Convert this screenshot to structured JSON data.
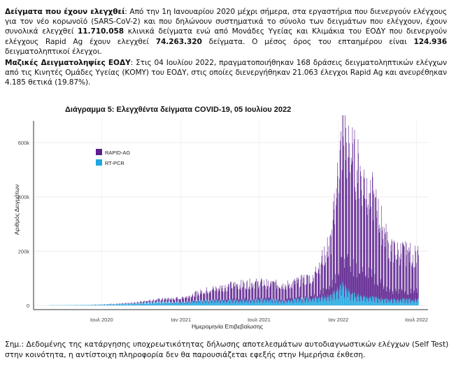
{
  "intro": {
    "p1_label": "Δείγματα που έχουν ελεγχθεί",
    "p1_a": ": Από την 1η Ιανουαρίου 2020 μέχρι σήμερα, στα εργαστήρια που διενεργούν ελέγχους για τον νέο κορωνοϊό (SARS-CoV-2) και που δηλώνουν συστηματικά το σύνολο των δειγμάτων που ελέγχουν, έχουν συνολικά ελεγχθεί ",
    "p1_total": "11.710.058",
    "p1_b": " κλινικά δείγματα ενώ από Μονάδες Υγείας και Κλιμάκια του ΕΟΔΥ που διενεργούν ελέγχους Rapid Ag έχουν ελεγχθεί ",
    "p1_rapid": "74.263.320",
    "p1_c": " δείγματα. Ο μέσος όρος του επταημέρου είναι ",
    "p1_avg": "124.936",
    "p1_d": " δειγματοληπτικοί έλεγχοι.",
    "p2_label": "Μαζικές Δειγματοληψίες ΕΟΔΥ",
    "p2_text": ": Στις 04 Ιουλίου 2022, πραγματοποιήθηκαν 168 δράσεις δειγματοληπτικών ελέγχων από τις Κινητές Ομάδες Υγείας (ΚΟΜΥ) του ΕΟΔΥ, στις οποίες διενεργήθηκαν 21.063 έλεγχοι Rapid Ag και ανευρέθηκαν 4.185 θετικά (19.87%)."
  },
  "note": "Σημ.: Δεδομένης της κατάργησης υποχρεωτικότητας δήλωσης αποτελεσμάτων αυτοδιαγνωστικών ελέγχων (Self Test) στην κοινότητα, η αντίστοιχη πληροφορία δεν θα παρουσιάζεται εφεξής στην Ημερήσια έκθεση.",
  "chart_data": {
    "type": "bar",
    "stacked": true,
    "title": "Διάγραμμα 5: Ελεγχθέντα δείγματα COVID-19, 05 Ιουλίου 2022",
    "xlabel": "Ημερομηνία Επιβεβαίωσης",
    "ylabel": "Αριθμός Δειγμάτων",
    "y_ticks": [
      "0",
      "200k",
      "400k",
      "600k"
    ],
    "y_tick_values": [
      0,
      200000,
      400000,
      600000
    ],
    "ylim": [
      0,
      680000
    ],
    "x_ticks": [
      "Ιουλ 2020",
      "Ιαν 2021",
      "Ιουλ 2021",
      "Ιαν 2022",
      "Ιουλ 2022"
    ],
    "x_tick_dates": [
      "2020-07-01",
      "2021-01-01",
      "2021-07-01",
      "2022-01-01",
      "2022-07-01"
    ],
    "x_range": [
      "2020-03-01",
      "2022-07-05"
    ],
    "legend_position": "top-left",
    "colors": {
      "RAPID-AG": "#5b1f8e",
      "RT-PCR": "#1fa8e0"
    },
    "series": [
      {
        "name": "RT-PCR",
        "x": [
          "2020-03-01",
          "2020-06-01",
          "2020-09-01",
          "2020-11-01",
          "2021-01-01",
          "2021-03-01",
          "2021-05-01",
          "2021-07-01",
          "2021-09-01",
          "2021-11-01",
          "2021-12-15",
          "2022-01-10",
          "2022-02-01",
          "2022-03-15",
          "2022-05-01",
          "2022-07-05"
        ],
        "values": [
          500,
          2000,
          6000,
          12000,
          12000,
          20000,
          18000,
          22000,
          18000,
          28000,
          35000,
          75000,
          40000,
          30000,
          20000,
          22000
        ]
      },
      {
        "name": "RAPID-AG",
        "x": [
          "2020-03-01",
          "2020-06-01",
          "2020-09-01",
          "2020-11-01",
          "2021-01-01",
          "2021-03-01",
          "2021-05-01",
          "2021-07-01",
          "2021-09-01",
          "2021-11-01",
          "2021-12-15",
          "2022-01-10",
          "2022-02-01",
          "2022-03-15",
          "2022-05-01",
          "2022-07-05"
        ],
        "values": [
          0,
          0,
          2000,
          8000,
          15000,
          35000,
          55000,
          60000,
          55000,
          75000,
          200000,
          550000,
          500000,
          390000,
          180000,
          160000
        ]
      }
    ]
  }
}
